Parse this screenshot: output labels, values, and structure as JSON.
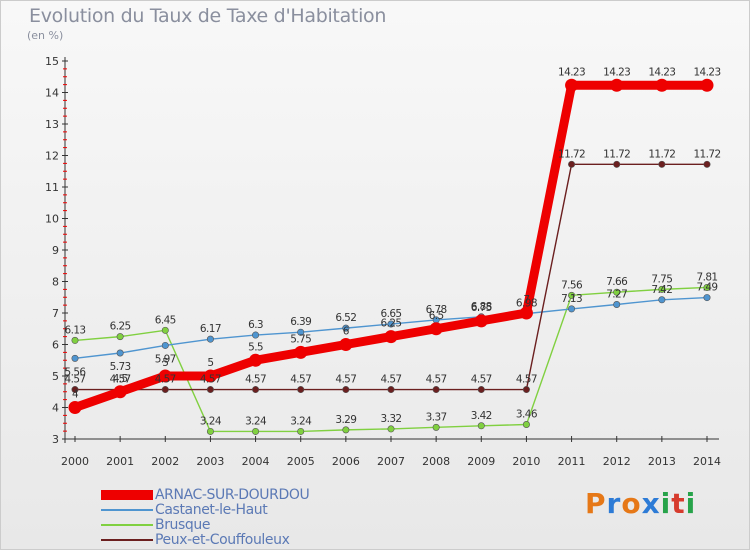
{
  "header": {
    "title": "Evolution du Taux de Taxe d'Habitation",
    "unit": "(en %)"
  },
  "brand": {
    "text": "Proxiti",
    "colors": [
      "#e67817",
      "#2d7bd6",
      "#e67817",
      "#2d7bd6",
      "#27a34a",
      "#d63b2d",
      "#27a34a"
    ]
  },
  "chart_data": {
    "type": "line",
    "title": "Evolution du Taux de Taxe d'Habitation",
    "ylabel": "(en %)",
    "xlabel": "",
    "x": [
      "2000",
      "2001",
      "2002",
      "2003",
      "2004",
      "2005",
      "2006",
      "2007",
      "2008",
      "2009",
      "2010",
      "2011",
      "2012",
      "2013",
      "2014"
    ],
    "ylim": [
      3,
      15
    ],
    "yticks": [
      "3",
      "4",
      "5",
      "6",
      "7",
      "8",
      "9",
      "10",
      "11",
      "12",
      "13",
      "14",
      "15"
    ],
    "grid": false,
    "legend_position": "bottom-left",
    "series": [
      {
        "name": "ARNAC-SUR-DOURDOU",
        "color": "#ee0000",
        "values": [
          4,
          4.5,
          5,
          5,
          5.5,
          5.75,
          6,
          6.25,
          6.5,
          6.75,
          7,
          14.23,
          14.23,
          14.23,
          14.23
        ],
        "labels": [
          "4",
          "4.5",
          "5",
          "5",
          "5.5",
          "5.75",
          "6",
          "6.25",
          "6.5",
          "6.75",
          "7",
          "14.23",
          "14.23",
          "14.23",
          "14.23"
        ]
      },
      {
        "name": "Castanet-le-Haut",
        "color": "#4f95d0",
        "values": [
          5.56,
          5.73,
          5.97,
          6.17,
          6.3,
          6.39,
          6.52,
          6.65,
          6.78,
          6.88,
          6.98,
          7.13,
          7.27,
          7.42,
          7.49
        ],
        "labels": [
          "5.56",
          "5.73",
          "5.97",
          "6.17",
          "6.3",
          "6.39",
          "6.52",
          "6.65",
          "6.78",
          "6.88",
          "6.98",
          "7.13",
          "7.27",
          "7.42",
          "7.49"
        ]
      },
      {
        "name": "Brusque",
        "color": "#80d040",
        "values": [
          6.13,
          6.25,
          6.45,
          3.24,
          3.24,
          3.24,
          3.29,
          3.32,
          3.37,
          3.42,
          3.46,
          7.56,
          7.66,
          7.75,
          7.81
        ],
        "labels": [
          "6.13",
          "6.25",
          "6.45",
          "3.24",
          "3.24",
          "3.24",
          "3.29",
          "3.32",
          "3.37",
          "3.42",
          "3.46",
          "7.56",
          "7.66",
          "7.75",
          "7.81"
        ]
      },
      {
        "name": "Peux-et-Couffouleux",
        "color": "#6b1f1f",
        "values": [
          4.57,
          4.57,
          4.57,
          4.57,
          4.57,
          4.57,
          4.57,
          4.57,
          4.57,
          4.57,
          4.57,
          11.72,
          11.72,
          11.72,
          11.72
        ],
        "labels": [
          "4.57",
          "4.57",
          "4.57",
          "4.57",
          "4.57",
          "4.57",
          "4.57",
          "4.57",
          "4.57",
          "4.57",
          "4.57",
          "11.72",
          "11.72",
          "11.72",
          "11.72"
        ]
      }
    ]
  }
}
